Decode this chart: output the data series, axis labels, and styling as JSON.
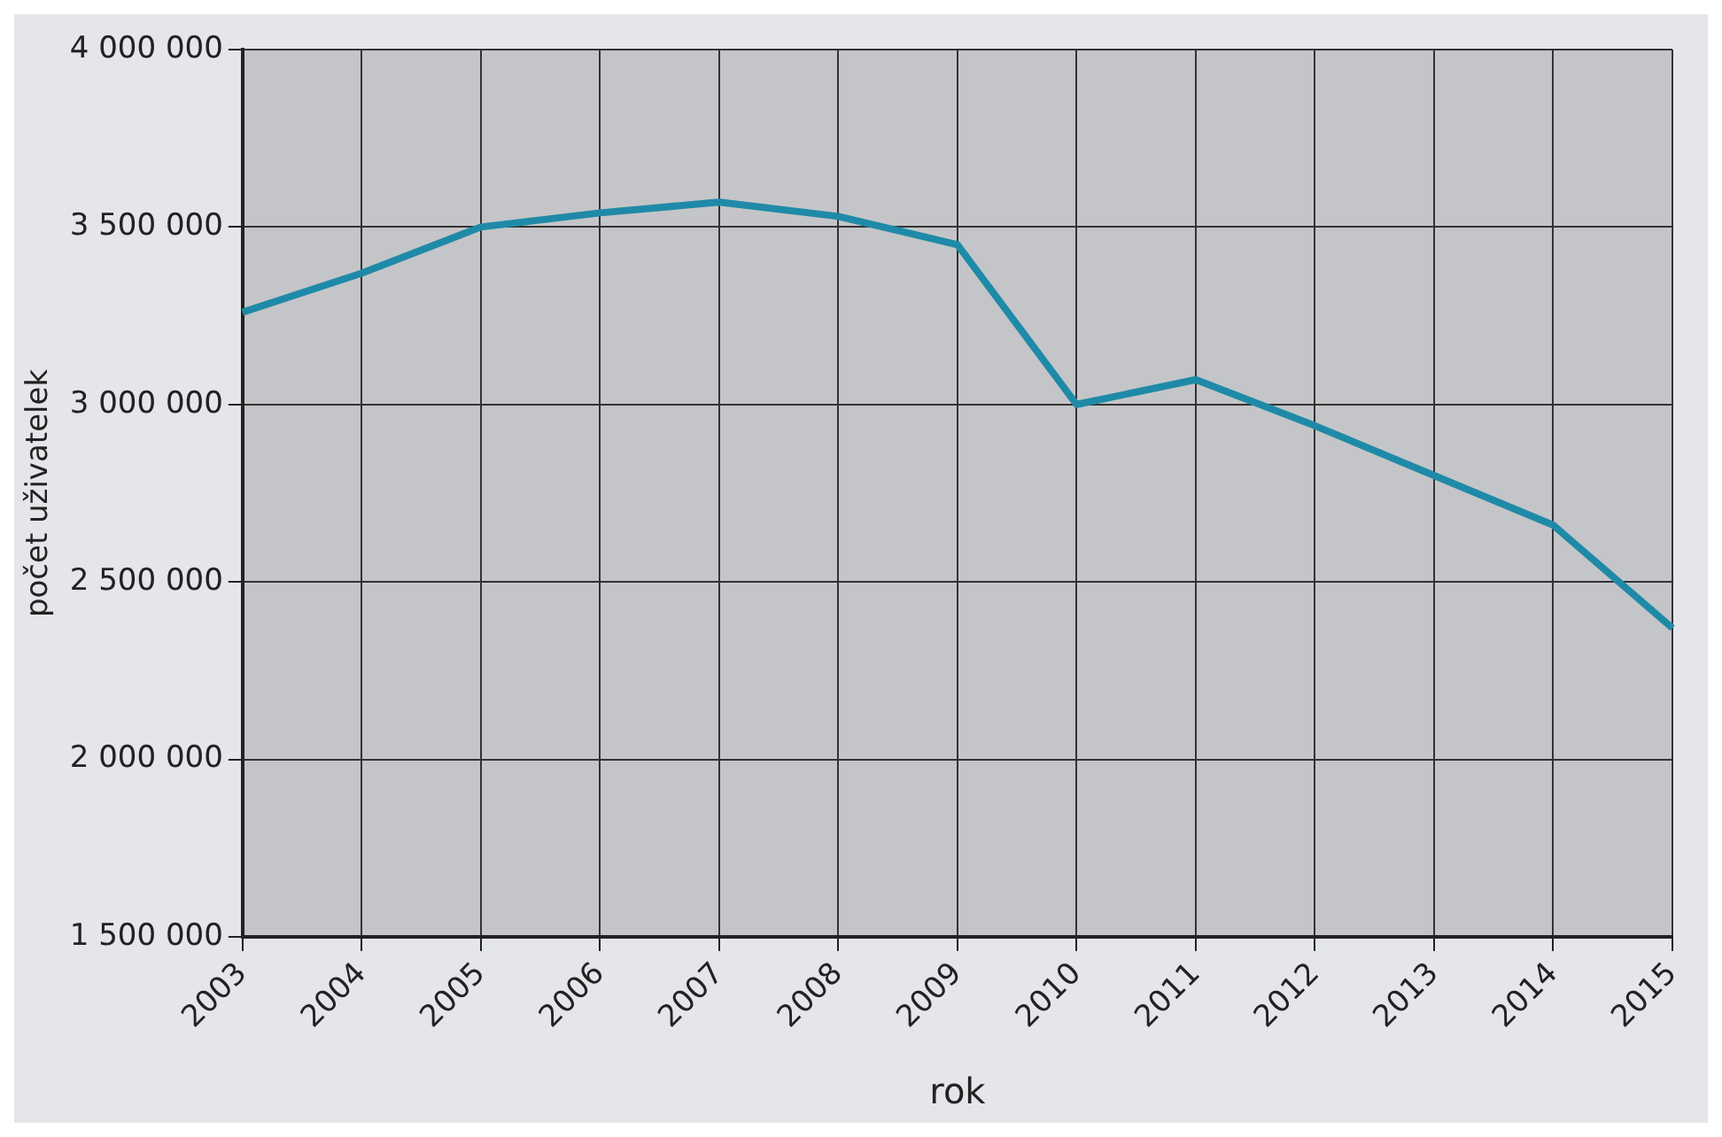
{
  "chart_data": {
    "type": "line",
    "xlabel": "rok",
    "ylabel": "počet uživatelek",
    "categories": [
      "2003",
      "2004",
      "2005",
      "2006",
      "2007",
      "2008",
      "2009",
      "2010",
      "2011",
      "2012",
      "2013",
      "2014",
      "2015"
    ],
    "series": [
      {
        "color": "#1f8aa8",
        "values": [
          3260000,
          3370000,
          3500000,
          3540000,
          3570000,
          3530000,
          3450000,
          3000000,
          3070000,
          2940000,
          2800000,
          2660000,
          2370000
        ]
      }
    ],
    "ylim": [
      1500000,
      4000000
    ],
    "yticks": [
      {
        "value": 1500000,
        "label": "1 500 000"
      },
      {
        "value": 2000000,
        "label": "2 000 000"
      },
      {
        "value": 2500000,
        "label": "2 500 000"
      },
      {
        "value": 3000000,
        "label": "3 000 000"
      },
      {
        "value": 3500000,
        "label": "3 500 000"
      },
      {
        "value": 4000000,
        "label": "4 000 000"
      }
    ],
    "grid": true,
    "legend": false,
    "marker": "none",
    "line_style": "solid"
  }
}
